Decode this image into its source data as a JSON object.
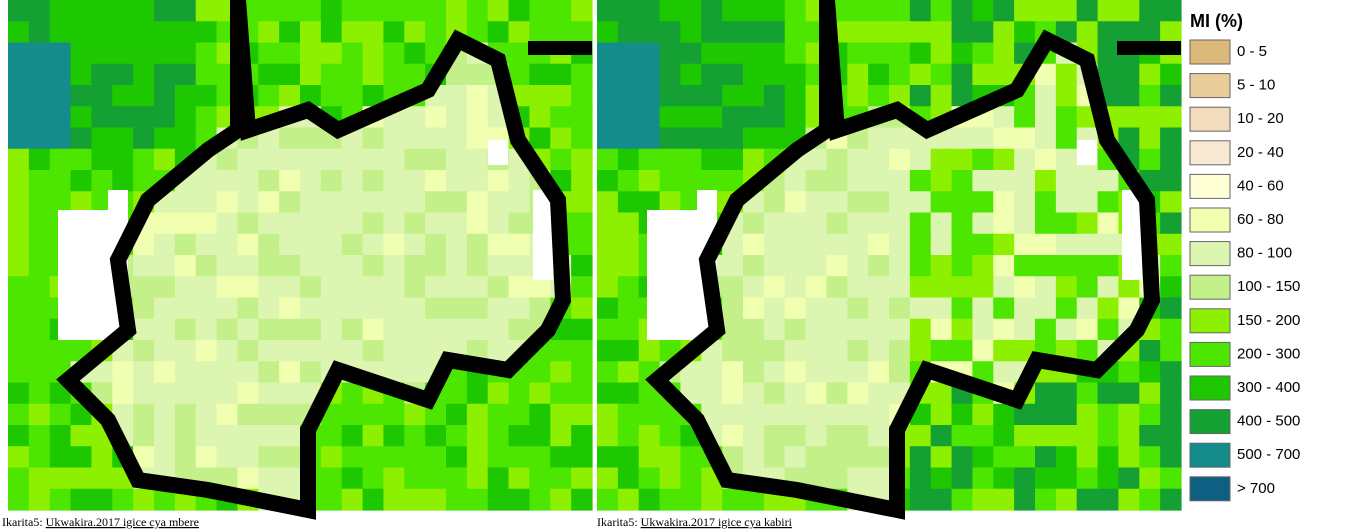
{
  "legend": {
    "title": "MI (%)",
    "items": [
      {
        "label": "0 - 5",
        "color": "#dcb97a"
      },
      {
        "label": "5 - 10",
        "color": "#e8cc9a"
      },
      {
        "label": "10 - 20",
        "color": "#f2dcbc"
      },
      {
        "label": "20 - 40",
        "color": "#f7e8d3"
      },
      {
        "label": "40 - 60",
        "color": "#ffffd6"
      },
      {
        "label": "60 - 80",
        "color": "#f0ffb0"
      },
      {
        "label": "80 - 100",
        "color": "#dcf5b0"
      },
      {
        "label": "100 - 150",
        "color": "#c4f08a"
      },
      {
        "label": "150 - 200",
        "color": "#8cf000"
      },
      {
        "label": "200 - 300",
        "color": "#4ce600"
      },
      {
        "label": "300 - 400",
        "color": "#1ec800"
      },
      {
        "label": "400 - 500",
        "color": "#14a032"
      },
      {
        "label": "500 - 700",
        "color": "#148c8c"
      },
      {
        "label": "> 700",
        "color": "#0f5f82"
      }
    ]
  },
  "captions": [
    {
      "prefix": "Ikarita5:",
      "link": "Ukwakira.2017 igice cya mbere"
    },
    {
      "prefix": "Ikarita5:",
      "link": "Ukwakira.2017 igice cya kabiri"
    }
  ]
}
